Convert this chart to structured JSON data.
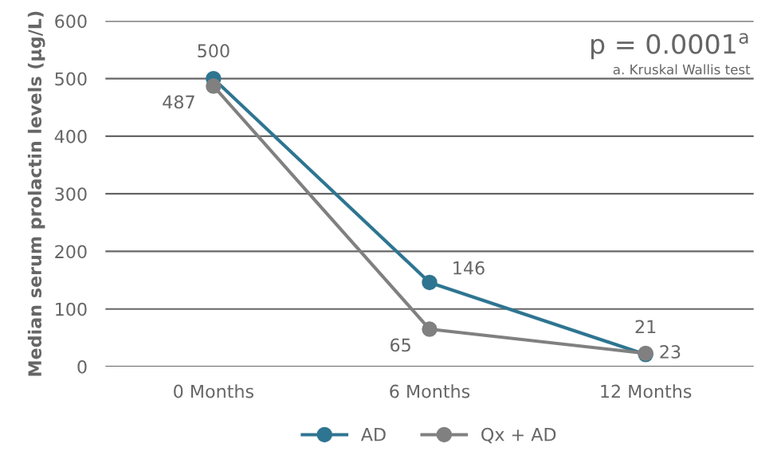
{
  "chart_data": {
    "type": "line",
    "ylabel": "Median serum prolactin levels (µg/L)",
    "categories": [
      "0 Months",
      "6 Months",
      "12 Months"
    ],
    "series": [
      {
        "name": "AD",
        "color": "#2e7591",
        "values": [
          500,
          146,
          21
        ]
      },
      {
        "name": "Qx + AD",
        "color": "#808080",
        "values": [
          487,
          65,
          23
        ]
      }
    ],
    "ylim": [
      0,
      600
    ],
    "yticks": [
      0,
      100,
      200,
      300,
      400,
      500,
      600
    ],
    "grid": "y",
    "legend": "bottom",
    "marker": "circle",
    "line_style": "solid",
    "data_labels": true,
    "annotations": [
      "p = 0.0001$^{a}$",
      "a. Kruskal Wallis test"
    ]
  }
}
